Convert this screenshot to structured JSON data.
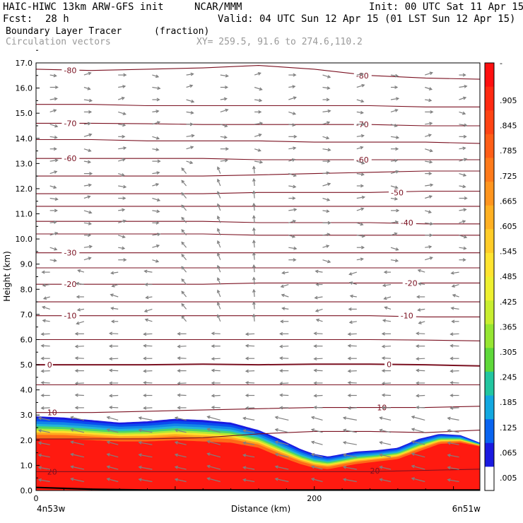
{
  "header": {
    "model": "HAIC-HIWC 13km ARW-GFS init",
    "org": "NCAR/MMM",
    "init": "Init: 00 UTC Sat 11 Apr 15",
    "fcst_label": "Fcst:",
    "fcst_value": "28 h",
    "valid": "Valid: 04 UTC Sun 12 Apr 15 (01 LST Sun 12 Apr 15)",
    "field": "Boundary Layer Tracer",
    "field_units": "(fraction)",
    "vectors": "Circulation vectors",
    "xy": "XY= 259.5, 91.6 to 274.6,110.2"
  },
  "colors": {
    "contour": "#7a1020",
    "vector": "#808080",
    "terrain": "#000000"
  },
  "chart_data": {
    "type": "heatmap",
    "title": "Boundary Layer Tracer",
    "xlabel": "Distance (km)",
    "ylabel": "Height (km)",
    "xlim": [
      0,
      319
    ],
    "ylim": [
      0,
      17
    ],
    "x_ticks": [
      {
        "value": 0,
        "label": "0"
      },
      {
        "value": 200,
        "label": "200"
      }
    ],
    "x_end_labels": [
      "4n53w",
      "6n51w"
    ],
    "y_ticks": [
      "0.0",
      "1.0",
      "2.0",
      "3.0",
      "4.0",
      "5.0",
      "6.0",
      "7.0",
      "8.0",
      "9.0",
      "10.0",
      "11.0",
      "12.0",
      "13.0",
      "14.0",
      "15.0",
      "16.0",
      "17.0"
    ],
    "colorbar": {
      "labels": [
        "-",
        ".905",
        ".845",
        ".785",
        ".725",
        ".665",
        ".605",
        ".545",
        ".485",
        ".425",
        ".365",
        ".305",
        ".245",
        ".185",
        ".125",
        ".065",
        ".005"
      ],
      "colors": [
        "#ff1010",
        "#ff2a12",
        "#ff4414",
        "#ff5e17",
        "#ff7a1a",
        "#ff951e",
        "#ffb022",
        "#ffcc28",
        "#ffe430",
        "#eef030",
        "#c8ee30",
        "#96e632",
        "#5ed83a",
        "#22c6a0",
        "#12a8e0",
        "#0a64f0",
        "#1a1ae0",
        "#ffffff"
      ]
    },
    "tracer_boundary": {
      "x": [
        0,
        20,
        40,
        60,
        80,
        100,
        120,
        140,
        160,
        175,
        190,
        200,
        210,
        220,
        230,
        245,
        260,
        275,
        290,
        305,
        319
      ],
      "top": [
        2.95,
        2.9,
        2.8,
        2.7,
        2.75,
        2.85,
        2.8,
        2.7,
        2.4,
        2.05,
        1.65,
        1.45,
        1.35,
        1.45,
        1.55,
        1.6,
        1.7,
        2.05,
        2.25,
        2.2,
        1.9
      ],
      "red_top": [
        2.05,
        2.05,
        2.0,
        1.95,
        1.95,
        2.0,
        1.95,
        1.9,
        1.7,
        1.35,
        1.05,
        0.9,
        0.85,
        0.95,
        1.05,
        1.15,
        1.25,
        1.55,
        1.85,
        1.9,
        1.75
      ]
    },
    "terrain": {
      "x": [
        0,
        40,
        80,
        120,
        160,
        200,
        240,
        280,
        319
      ],
      "height": [
        0.12,
        0.05,
        0.02,
        0.02,
        0.02,
        0.02,
        0.02,
        0.02,
        0.02
      ]
    },
    "contours": [
      {
        "level": -80,
        "y": [
          16.75,
          16.7,
          16.75,
          16.8,
          16.9,
          16.75,
          16.5,
          16.4,
          16.35
        ]
      },
      {
        "level": -75,
        "y": [
          15.35,
          15.35,
          15.3,
          15.3,
          15.3,
          15.3,
          15.3,
          15.25,
          15.25
        ]
      },
      {
        "level": -70,
        "y": [
          14.6,
          14.6,
          14.58,
          14.55,
          14.55,
          14.55,
          14.55,
          14.5,
          14.5
        ]
      },
      {
        "level": -65,
        "y": [
          13.95,
          13.95,
          13.9,
          13.9,
          13.9,
          13.85,
          13.85,
          13.85,
          13.8
        ]
      },
      {
        "level": -60,
        "y": [
          13.2,
          13.2,
          13.2,
          13.2,
          13.15,
          13.15,
          13.15,
          13.15,
          13.15
        ]
      },
      {
        "level": -55,
        "y": [
          12.5,
          12.5,
          12.5,
          12.5,
          12.55,
          12.6,
          12.65,
          12.7,
          12.7
        ]
      },
      {
        "level": -50,
        "y": [
          11.8,
          11.8,
          11.8,
          11.8,
          11.85,
          11.85,
          11.85,
          11.9,
          11.9
        ]
      },
      {
        "level": -45,
        "y": [
          11.3,
          11.3,
          11.3,
          11.3,
          11.3,
          11.3,
          11.3,
          11.3,
          11.3
        ]
      },
      {
        "level": -40,
        "y": [
          10.7,
          10.7,
          10.7,
          10.7,
          10.65,
          10.65,
          10.65,
          10.6,
          10.6
        ]
      },
      {
        "level": -35,
        "y": [
          10.2,
          10.2,
          10.2,
          10.2,
          10.15,
          10.15,
          10.15,
          10.15,
          10.15
        ]
      },
      {
        "level": -30,
        "y": [
          9.45,
          9.45,
          9.45,
          9.45,
          9.45,
          9.45,
          9.45,
          9.45,
          9.45
        ]
      },
      {
        "level": -25,
        "y": [
          8.85,
          8.85,
          8.85,
          8.85,
          8.85,
          8.85,
          8.85,
          8.85,
          8.85
        ]
      },
      {
        "level": -20,
        "y": [
          8.2,
          8.2,
          8.2,
          8.2,
          8.25,
          8.25,
          8.25,
          8.25,
          8.25
        ]
      },
      {
        "level": -15,
        "y": [
          7.5,
          7.5,
          7.5,
          7.5,
          7.5,
          7.5,
          7.5,
          7.5,
          7.5
        ]
      },
      {
        "level": -10,
        "y": [
          6.95,
          6.95,
          6.95,
          6.95,
          6.95,
          6.95,
          6.95,
          6.9,
          6.9
        ]
      },
      {
        "level": -5,
        "y": [
          6.0,
          6.0,
          6.0,
          6.0,
          6.0,
          6.0,
          6.0,
          5.98,
          5.95
        ]
      },
      {
        "level": 0,
        "y": [
          5.0,
          5.0,
          5.0,
          5.02,
          5.0,
          5.02,
          5.02,
          5.0,
          4.95
        ]
      },
      {
        "level": 5,
        "y": [
          4.2,
          4.2,
          4.2,
          4.2,
          4.2,
          4.2,
          4.2,
          4.2,
          4.2
        ]
      },
      {
        "level": 10,
        "y": [
          3.1,
          3.1,
          3.15,
          3.2,
          3.25,
          3.3,
          3.3,
          3.3,
          3.35
        ]
      },
      {
        "level": 15,
        "y": [
          2.05,
          2.05,
          2.05,
          2.1,
          2.25,
          2.35,
          2.35,
          2.3,
          2.4
        ]
      },
      {
        "level": 20,
        "y": [
          0.75,
          0.75,
          0.75,
          0.75,
          0.75,
          0.75,
          0.75,
          0.8,
          0.85
        ]
      }
    ],
    "contour_labels": [
      {
        "text": "-80",
        "x": 20,
        "y": 16.7
      },
      {
        "text": "-80",
        "x": 230,
        "y": 16.5
      },
      {
        "text": "-70",
        "x": 20,
        "y": 14.6
      },
      {
        "text": "-70",
        "x": 230,
        "y": 14.55
      },
      {
        "text": "-60",
        "x": 20,
        "y": 13.2
      },
      {
        "text": "-60",
        "x": 230,
        "y": 13.15
      },
      {
        "text": "-50",
        "x": 255,
        "y": 11.85
      },
      {
        "text": "-40",
        "x": 262,
        "y": 10.65
      },
      {
        "text": "-30",
        "x": 20,
        "y": 9.45
      },
      {
        "text": "-20",
        "x": 20,
        "y": 8.2
      },
      {
        "text": "-20",
        "x": 265,
        "y": 8.25
      },
      {
        "text": "-10",
        "x": 20,
        "y": 6.95
      },
      {
        "text": "-10",
        "x": 262,
        "y": 6.95
      },
      {
        "text": "0",
        "x": 8,
        "y": 5.0
      },
      {
        "text": "0",
        "x": 252,
        "y": 5.02
      },
      {
        "text": "10",
        "x": 8,
        "y": 3.1
      },
      {
        "text": "10",
        "x": 245,
        "y": 3.3
      },
      {
        "text": "20",
        "x": 8,
        "y": 0.75
      },
      {
        "text": "20",
        "x": 240,
        "y": 0.78
      }
    ]
  }
}
